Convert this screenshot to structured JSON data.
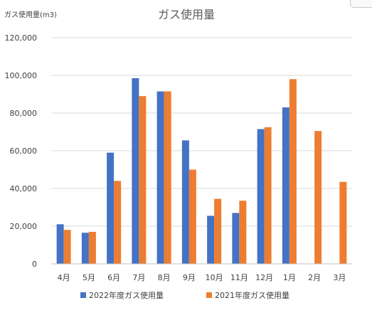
{
  "chart_data": {
    "type": "bar",
    "title": "ガス使用量",
    "ylabel": "ガス使用量(m3)",
    "xlabel": "",
    "ylim": [
      0,
      120000
    ],
    "yticks": [
      0,
      20000,
      40000,
      60000,
      80000,
      100000,
      120000
    ],
    "ytick_labels": [
      "0",
      "20,000",
      "40,000",
      "60,000",
      "80,000",
      "100,000",
      "120,000"
    ],
    "grid": true,
    "legend_position": "bottom",
    "categories": [
      "4月",
      "5月",
      "6月",
      "7月",
      "8月",
      "9月",
      "10月",
      "11月",
      "12月",
      "1月",
      "2月",
      "3月"
    ],
    "series": [
      {
        "name": "2022年度ガス使用量",
        "color": "#4472c4",
        "values": [
          21000,
          16500,
          59000,
          98500,
          91500,
          65500,
          25500,
          27000,
          71500,
          83000,
          null,
          null
        ]
      },
      {
        "name": "2021年度ガス使用量",
        "color": "#ed7d31",
        "values": [
          18000,
          17000,
          44000,
          89000,
          91500,
          50000,
          34500,
          33500,
          72500,
          98000,
          70500,
          43500
        ]
      }
    ]
  }
}
